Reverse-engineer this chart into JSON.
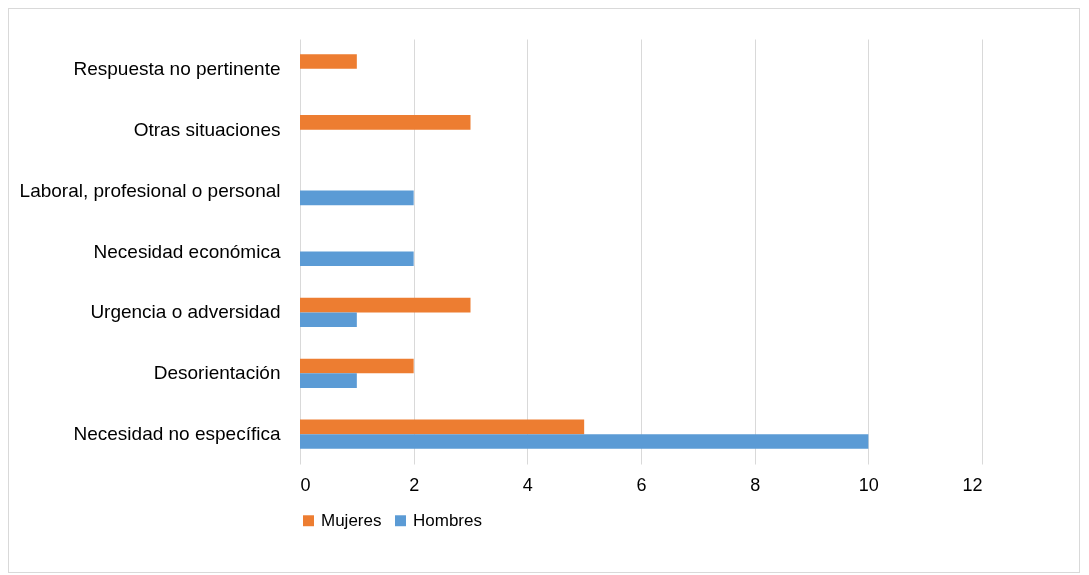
{
  "chart_data": {
    "type": "bar",
    "orientation": "horizontal",
    "categories": [
      "Respuesta no pertinente",
      "Otras situaciones",
      "Laboral, profesional o personal",
      "Necesidad económica",
      "Urgencia o adversidad",
      "Desorientación",
      "Necesidad no específica"
    ],
    "series": [
      {
        "name": "Mujeres",
        "color": "#ed7d31",
        "values": [
          1,
          3,
          null,
          null,
          3,
          2,
          5
        ]
      },
      {
        "name": "Hombres",
        "color": "#5b9bd5",
        "values": [
          null,
          null,
          2,
          2,
          1,
          1,
          10
        ]
      }
    ],
    "xlim": [
      0,
      12
    ],
    "xticks": [
      0,
      2,
      4,
      6,
      8,
      10,
      12
    ],
    "grid": "x",
    "legend": "bottom"
  }
}
